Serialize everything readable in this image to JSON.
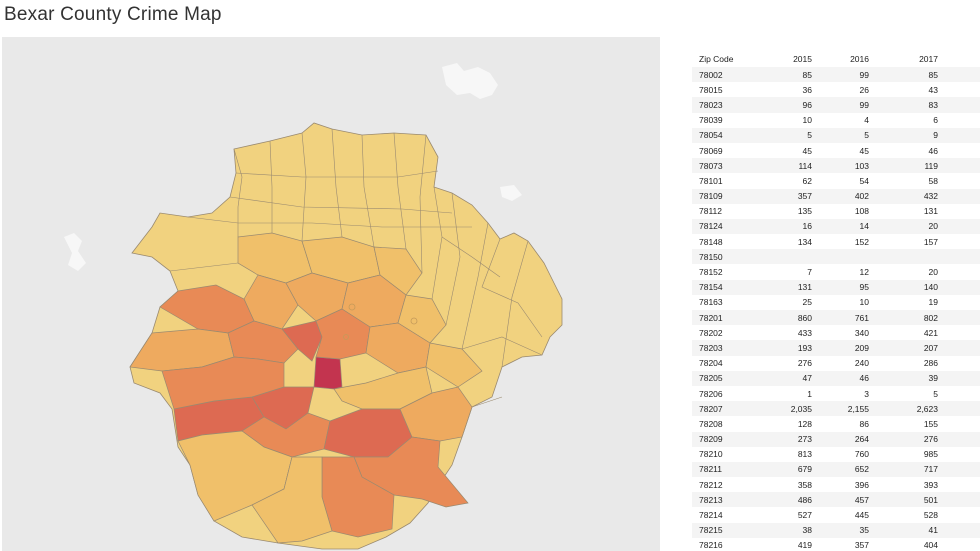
{
  "title": "Bexar County Crime Map",
  "map": {
    "colors": {
      "background": "#e9e9e9",
      "low": "#f1d27f",
      "mid_low": "#f0c06a",
      "mid": "#eeaa5f",
      "mid_high": "#e88a56",
      "high": "#dd6a52",
      "max": "#c3344f",
      "border": "#9a8a70"
    }
  },
  "chart_data": {
    "type": "table",
    "columns": [
      "Zip Code",
      "2015",
      "2016",
      "2017"
    ],
    "rows": [
      {
        "zip": "78002",
        "y2015": "85",
        "y2016": "99",
        "y2017": "85"
      },
      {
        "zip": "78015",
        "y2015": "36",
        "y2016": "26",
        "y2017": "43"
      },
      {
        "zip": "78023",
        "y2015": "96",
        "y2016": "99",
        "y2017": "83"
      },
      {
        "zip": "78039",
        "y2015": "10",
        "y2016": "4",
        "y2017": "6"
      },
      {
        "zip": "78054",
        "y2015": "5",
        "y2016": "5",
        "y2017": "9"
      },
      {
        "zip": "78069",
        "y2015": "45",
        "y2016": "45",
        "y2017": "46"
      },
      {
        "zip": "78073",
        "y2015": "114",
        "y2016": "103",
        "y2017": "119"
      },
      {
        "zip": "78101",
        "y2015": "62",
        "y2016": "54",
        "y2017": "58"
      },
      {
        "zip": "78109",
        "y2015": "357",
        "y2016": "402",
        "y2017": "432"
      },
      {
        "zip": "78112",
        "y2015": "135",
        "y2016": "108",
        "y2017": "131"
      },
      {
        "zip": "78124",
        "y2015": "16",
        "y2016": "14",
        "y2017": "20"
      },
      {
        "zip": "78148",
        "y2015": "134",
        "y2016": "152",
        "y2017": "157"
      },
      {
        "zip": "78150",
        "y2015": "",
        "y2016": "",
        "y2017": ""
      },
      {
        "zip": "78152",
        "y2015": "7",
        "y2016": "12",
        "y2017": "20"
      },
      {
        "zip": "78154",
        "y2015": "131",
        "y2016": "95",
        "y2017": "140"
      },
      {
        "zip": "78163",
        "y2015": "25",
        "y2016": "10",
        "y2017": "19"
      },
      {
        "zip": "78201",
        "y2015": "860",
        "y2016": "761",
        "y2017": "802"
      },
      {
        "zip": "78202",
        "y2015": "433",
        "y2016": "340",
        "y2017": "421"
      },
      {
        "zip": "78203",
        "y2015": "193",
        "y2016": "209",
        "y2017": "207"
      },
      {
        "zip": "78204",
        "y2015": "276",
        "y2016": "240",
        "y2017": "286"
      },
      {
        "zip": "78205",
        "y2015": "47",
        "y2016": "46",
        "y2017": "39"
      },
      {
        "zip": "78206",
        "y2015": "1",
        "y2016": "3",
        "y2017": "5"
      },
      {
        "zip": "78207",
        "y2015": "2,035",
        "y2016": "2,155",
        "y2017": "2,623"
      },
      {
        "zip": "78208",
        "y2015": "128",
        "y2016": "86",
        "y2017": "155"
      },
      {
        "zip": "78209",
        "y2015": "273",
        "y2016": "264",
        "y2017": "276"
      },
      {
        "zip": "78210",
        "y2015": "813",
        "y2016": "760",
        "y2017": "985"
      },
      {
        "zip": "78211",
        "y2015": "679",
        "y2016": "652",
        "y2017": "717"
      },
      {
        "zip": "78212",
        "y2015": "358",
        "y2016": "396",
        "y2017": "393"
      },
      {
        "zip": "78213",
        "y2015": "486",
        "y2016": "457",
        "y2017": "501"
      },
      {
        "zip": "78214",
        "y2015": "527",
        "y2016": "445",
        "y2017": "528"
      },
      {
        "zip": "78215",
        "y2015": "38",
        "y2016": "35",
        "y2017": "41"
      },
      {
        "zip": "78216",
        "y2015": "419",
        "y2016": "357",
        "y2017": "404"
      }
    ]
  }
}
